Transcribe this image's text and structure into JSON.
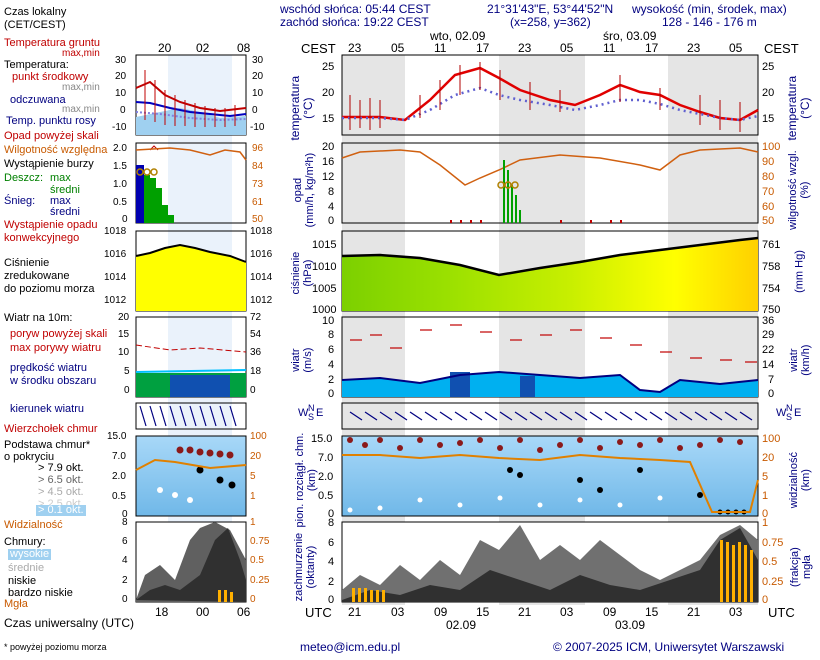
{
  "header": {
    "sunrise": "wschód słońca: 05:44 CEST",
    "sunset": "zachód słońca: 19:22 CEST",
    "coords": "21°31'43\"E, 53°44'52\"N",
    "grid": "(x=258,  y=362)",
    "height_label": "wysokość (min, środek, max)",
    "height_values": "128 - 146 - 176 m"
  },
  "legend": {
    "time_zone": "Czas lokalny\n(CET/CEST)",
    "time_ticks": [
      "20",
      "02",
      "08"
    ],
    "utc_label": "Czas uniwersalny (UTC)",
    "utc_ticks": [
      "18",
      "00",
      "06"
    ],
    "temp_ground": "Temperatura gruntu",
    "temp_ground_range": "max,min",
    "temp_header": "Temperatura:",
    "temp_mid": "punkt środkowy",
    "temp_minmax": "max,min",
    "temp_felt": "odczuwana",
    "temp_felt_minmax": "max,min",
    "dew_point": "Temp. punktu rosy",
    "temp_ticks": [
      "30",
      "20",
      "10",
      "0",
      "-10"
    ],
    "opad_above": "Opad powyżej skali",
    "humidity": "Wilgotność względna",
    "storm": "Wystąpienie burzy",
    "rain": "Deszcz:",
    "rain_max": "max",
    "rain_avg": "średni",
    "snow": "Śnieg:",
    "snow_max": "max",
    "snow_avg": "średni",
    "conv": "Wystąpienie opadu\nkonwekcyjnego",
    "precip_ticks": [
      "2.0",
      "1.5",
      "1.0",
      "0.5",
      "0"
    ],
    "hum_ticks": [
      "96",
      "84",
      "73",
      "61",
      "50"
    ],
    "pressure": "Ciśnienie\nzredukowane\ndo poziomu morza",
    "press_ticks": [
      "1018",
      "1016",
      "1014",
      "1012"
    ],
    "wind_header": "Wiatr na 10m:",
    "gust_above": "poryw powyżej skali",
    "gust_max": "max porywy wiatru",
    "wind_speed": "prędkość wiatru\nw środku obszaru",
    "wind_ticks": [
      "20",
      "15",
      "10",
      "5",
      "0"
    ],
    "wind_kmh_ticks": [
      "72",
      "54",
      "36",
      "18",
      "0"
    ],
    "wind_dir": "kierunek wiatru",
    "cloud_top": "Wierzchołek chmur",
    "cloud_base": "Podstawa chmur*\no pokryciu",
    "okt_labels": [
      "> 7.9 okt.",
      "> 6.5 okt.",
      "> 4.5 okt.",
      "> 2.5 okt.",
      "> 0.1 okt."
    ],
    "visibility": "Widzialność",
    "cb_ticks": [
      "15.0",
      "7.0",
      "2.0",
      "0.5",
      "0"
    ],
    "vis_ticks": [
      "100",
      "20",
      "5",
      "1"
    ],
    "clouds": "Chmury:",
    "cl_high": "wysokie",
    "cl_mid": "średnie",
    "cl_low": "niskie",
    "cl_vlow": "bardzo niskie",
    "fog": "Mgła",
    "cloud_ticks": [
      "8",
      "6",
      "4",
      "2",
      "0"
    ],
    "fog_ticks": [
      "1",
      "0.75",
      "0.5",
      "0.25",
      "0"
    ],
    "footnote": "* powyżej poziomu morza"
  },
  "main": {
    "cest": "CEST",
    "utc": "UTC",
    "top_hours": [
      "23",
      "05",
      "11",
      "17",
      "23",
      "05",
      "11",
      "17",
      "23",
      "05"
    ],
    "bottom_hours": [
      "21",
      "03",
      "09",
      "15",
      "21",
      "03",
      "09",
      "15",
      "21",
      "03"
    ],
    "day1": "wto, 02.09",
    "day2": "śro, 03.09",
    "day1_bottom": "02.09",
    "day2_bottom": "03.09",
    "temp_label": "temperatura\n(°C)",
    "temp_ticks": [
      "25",
      "20",
      "15"
    ],
    "precip_label": "opad\n(mm/h, kg/m²h)",
    "precip_ticks": [
      "20",
      "16",
      "12",
      "8",
      "4",
      "0"
    ],
    "hum_label": "wilgotność wzgl.\n(%)",
    "hum_ticks": [
      "100",
      "90",
      "80",
      "70",
      "60",
      "50"
    ],
    "press_label": "ciśnienie\n(hPa)",
    "press_ticks": [
      "1015",
      "1010",
      "1005",
      "1000"
    ],
    "pressmm_label": "(mm Hg)",
    "pressmm_ticks": [
      "761",
      "758",
      "754",
      "750"
    ],
    "wind_label": "wiatr\n(m/s)",
    "wind_ticks": [
      "10",
      "8",
      "6",
      "4",
      "2",
      "0"
    ],
    "windkmh_label": "wiatr\n(km/h)",
    "windkmh_ticks": [
      "36",
      "29",
      "22",
      "14",
      "7",
      "0"
    ],
    "dir_letters": [
      "W",
      "S",
      "N",
      "E"
    ],
    "cb_label": "pion. rozciągł. chm.\n(km)",
    "cb_ticks": [
      "15.0",
      "7.0",
      "2.0",
      "0.5",
      "0"
    ],
    "vis_label": "widzialność\n(km)",
    "vis_ticks": [
      "100",
      "20",
      "5",
      "1",
      "0"
    ],
    "cloud_label": "zachmurzenie\n(oktanty)",
    "cloud_ticks": [
      "8",
      "6",
      "4",
      "2",
      "0"
    ],
    "fog_label": "(frakcja)\nmgła",
    "fog_ticks": [
      "1",
      "0.75",
      "0.5",
      "0.25",
      "0"
    ]
  },
  "footer": {
    "email": "meteo@icm.edu.pl",
    "copyright": "© 2007-2025 ICM, Uniwersytet Warszawski"
  },
  "colors": {
    "navy": "#000080",
    "red": "#c00000",
    "orange": "#d06010",
    "pressure_fill": "#ffff00",
    "wind_fill": "#00b0f0",
    "cloud_bg": "#87c8f0"
  }
}
